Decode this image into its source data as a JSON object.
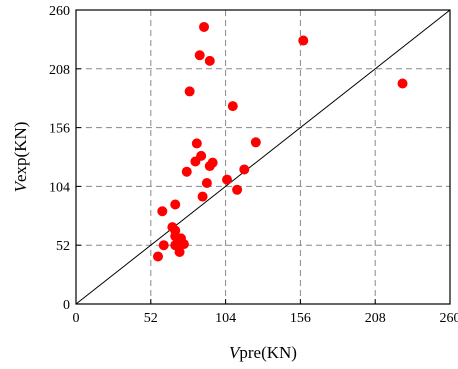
{
  "chart_data": {
    "type": "scatter",
    "title": "",
    "xlabel_prefix": "V",
    "xlabel_suffix": "pre(KN)",
    "ylabel_prefix": "V",
    "ylabel_suffix": "exp(KN)",
    "xlim": [
      0,
      260
    ],
    "ylim": [
      0,
      260
    ],
    "x_ticks": [
      "0",
      "52",
      "104",
      "156",
      "208",
      "260"
    ],
    "y_ticks": [
      "0",
      "52",
      "104",
      "156",
      "208",
      "260"
    ],
    "grid": "dashed",
    "reference_line": "y = x",
    "marker_color": "#ff0000",
    "points": [
      {
        "x": 57,
        "y": 42
      },
      {
        "x": 61,
        "y": 52
      },
      {
        "x": 60,
        "y": 82
      },
      {
        "x": 67,
        "y": 68
      },
      {
        "x": 69,
        "y": 65
      },
      {
        "x": 69,
        "y": 60
      },
      {
        "x": 69,
        "y": 52
      },
      {
        "x": 69,
        "y": 88
      },
      {
        "x": 72,
        "y": 46
      },
      {
        "x": 73,
        "y": 58
      },
      {
        "x": 75,
        "y": 53
      },
      {
        "x": 77,
        "y": 117
      },
      {
        "x": 79,
        "y": 188
      },
      {
        "x": 83,
        "y": 126
      },
      {
        "x": 84,
        "y": 142
      },
      {
        "x": 86,
        "y": 220
      },
      {
        "x": 87,
        "y": 131
      },
      {
        "x": 88,
        "y": 95
      },
      {
        "x": 89,
        "y": 245
      },
      {
        "x": 91,
        "y": 107
      },
      {
        "x": 93,
        "y": 122
      },
      {
        "x": 93,
        "y": 215
      },
      {
        "x": 95,
        "y": 125
      },
      {
        "x": 105,
        "y": 110
      },
      {
        "x": 109,
        "y": 175
      },
      {
        "x": 112,
        "y": 101
      },
      {
        "x": 117,
        "y": 119
      },
      {
        "x": 125,
        "y": 143
      },
      {
        "x": 158,
        "y": 233
      },
      {
        "x": 227,
        "y": 195
      }
    ]
  }
}
